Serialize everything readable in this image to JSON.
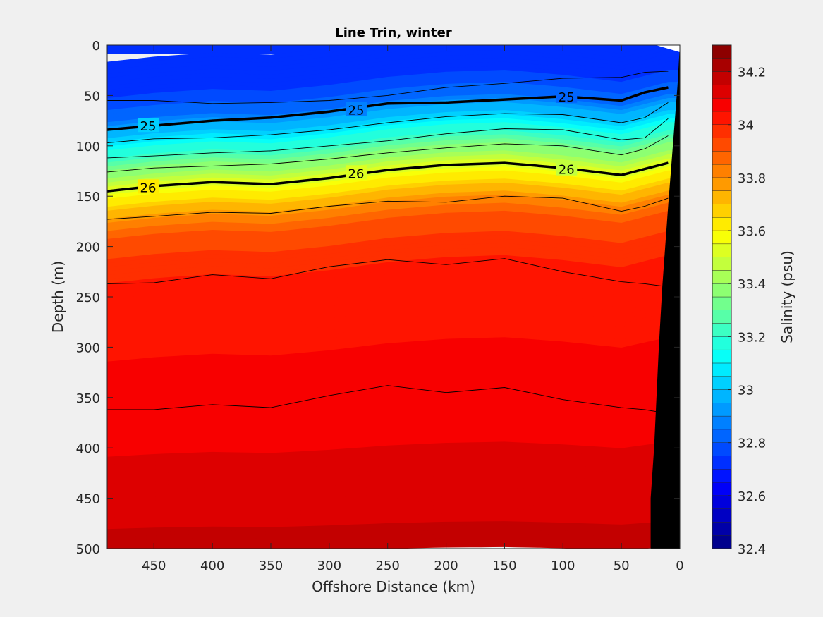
{
  "chart_data": {
    "type": "heatmap",
    "title": "Line Trin, winter",
    "xlabel": "Offshore Distance (km)",
    "ylabel": "Depth (m)",
    "colorbar_label": "Salinity (psu)",
    "xlim": [
      490,
      0
    ],
    "ylim": [
      0,
      500
    ],
    "x_direction": "reversed",
    "y_direction": "reversed",
    "clim": [
      32.4,
      34.3
    ],
    "colormap": "jet",
    "color_levels": 38,
    "xticks": [
      "450",
      "400",
      "350",
      "300",
      "250",
      "200",
      "150",
      "100",
      "50",
      "0"
    ],
    "xtick_values": [
      450,
      400,
      350,
      300,
      250,
      200,
      150,
      100,
      50,
      0
    ],
    "yticks": [
      "0",
      "50",
      "100",
      "150",
      "200",
      "250",
      "300",
      "350",
      "400",
      "450",
      "500"
    ],
    "ytick_values": [
      0,
      50,
      100,
      150,
      200,
      250,
      300,
      350,
      400,
      450,
      500
    ],
    "cbar_ticks": [
      "32.4",
      "32.6",
      "32.8",
      "33",
      "33.2",
      "33.4",
      "33.6",
      "33.8",
      "34",
      "34.2"
    ],
    "cbar_tick_values": [
      32.4,
      32.6,
      32.8,
      33.0,
      33.2,
      33.4,
      33.6,
      33.8,
      34.0,
      34.2
    ],
    "grid": false,
    "salinity_profile": {
      "depth": [
        0,
        30,
        60,
        80,
        100,
        120,
        140,
        160,
        180,
        220,
        260,
        300,
        350,
        400,
        450,
        500
      ],
      "salinity": [
        32.7,
        32.72,
        32.85,
        33.05,
        33.25,
        33.45,
        33.62,
        33.8,
        33.92,
        34.0,
        34.04,
        34.05,
        34.07,
        34.1,
        34.14,
        34.16
      ]
    },
    "density_contours": [
      {
        "label": "",
        "bold": false,
        "x": [
          490,
          450,
          400,
          350,
          300,
          250,
          200,
          150,
          100,
          50,
          30,
          10
        ],
        "depth": [
          55,
          55,
          58,
          57,
          55,
          50,
          42,
          38,
          33,
          32,
          27,
          26
        ]
      },
      {
        "label": "25",
        "bold": true,
        "x": [
          490,
          450,
          400,
          350,
          300,
          250,
          200,
          150,
          100,
          50,
          30,
          10
        ],
        "depth": [
          84,
          80,
          75,
          72,
          66,
          58,
          57,
          54,
          51,
          55,
          47,
          42
        ]
      },
      {
        "label": "",
        "bold": false,
        "x": [
          490,
          450,
          400,
          350,
          300,
          250,
          200,
          150,
          100,
          50,
          30,
          10
        ],
        "depth": [
          97,
          93,
          92,
          89,
          84,
          77,
          71,
          68,
          69,
          77,
          72,
          57
        ]
      },
      {
        "label": "",
        "bold": false,
        "x": [
          490,
          450,
          400,
          350,
          300,
          250,
          200,
          150,
          100,
          50,
          30,
          10
        ],
        "depth": [
          112,
          110,
          107,
          105,
          100,
          95,
          88,
          83,
          84,
          94,
          92,
          73
        ]
      },
      {
        "label": "",
        "bold": false,
        "x": [
          490,
          450,
          400,
          350,
          300,
          250,
          200,
          150,
          100,
          50,
          30,
          10
        ],
        "depth": [
          126,
          122,
          120,
          118,
          113,
          107,
          102,
          98,
          100,
          109,
          103,
          90
        ]
      },
      {
        "label": "26",
        "bold": true,
        "x": [
          490,
          450,
          400,
          350,
          300,
          250,
          200,
          150,
          100,
          50,
          30,
          10
        ],
        "depth": [
          145,
          140,
          136,
          138,
          132,
          124,
          119,
          117,
          122,
          129,
          123,
          117
        ]
      },
      {
        "label": "",
        "bold": false,
        "x": [
          490,
          450,
          400,
          350,
          300,
          250,
          200,
          150,
          100,
          50,
          30,
          10
        ],
        "depth": [
          173,
          170,
          166,
          167,
          160,
          155,
          156,
          150,
          152,
          165,
          160,
          152
        ]
      },
      {
        "label": "",
        "bold": false,
        "x": [
          490,
          450,
          400,
          350,
          300,
          250,
          200,
          150,
          100,
          50,
          30,
          10
        ],
        "depth": [
          237,
          236,
          228,
          232,
          220,
          213,
          218,
          212,
          225,
          235,
          237,
          240
        ]
      },
      {
        "label": "",
        "bold": false,
        "x": [
          490,
          450,
          400,
          350,
          300,
          250,
          200,
          150,
          100,
          50,
          30,
          10
        ],
        "depth": [
          362,
          362,
          357,
          360,
          348,
          338,
          345,
          340,
          352,
          360,
          362,
          366
        ]
      }
    ],
    "contour_labels": [
      {
        "text": "25",
        "x": 455,
        "depth": 80
      },
      {
        "text": "25",
        "x": 277,
        "depth": 64
      },
      {
        "text": "25",
        "x": 97,
        "depth": 51
      },
      {
        "text": "26",
        "x": 455,
        "depth": 141
      },
      {
        "text": "26",
        "x": 277,
        "depth": 127
      },
      {
        "text": "26",
        "x": 97,
        "depth": 123
      }
    ],
    "bathymetry_mask": {
      "fill": "#000000",
      "x": [
        0,
        2,
        6,
        10,
        15,
        18,
        22,
        25,
        25,
        0
      ],
      "depth": [
        0,
        40,
        100,
        160,
        240,
        300,
        400,
        450,
        500,
        500
      ]
    }
  }
}
